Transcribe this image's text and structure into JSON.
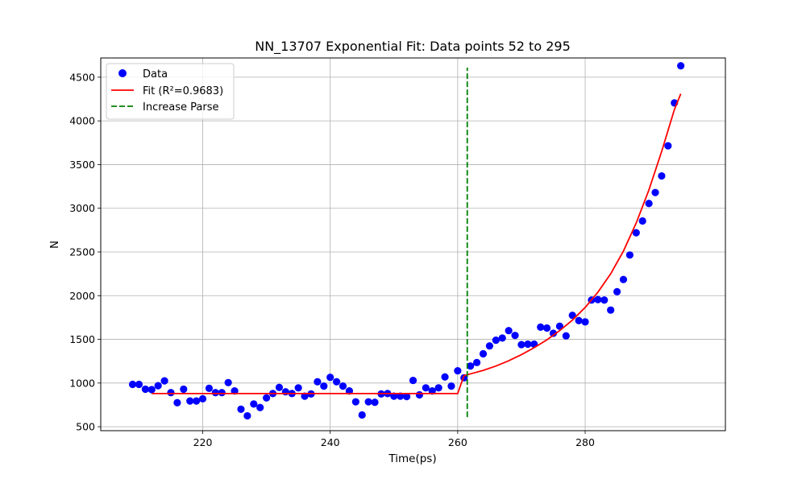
{
  "chart_data": {
    "type": "scatter",
    "title": "NN_13707 Exponential Fit: Data points 52 to 295",
    "xlabel": "Time(ps)",
    "ylabel": "N",
    "xlim": [
      204,
      302
    ],
    "ylim": [
      455,
      4720
    ],
    "xticks": [
      220,
      240,
      260,
      280
    ],
    "yticks": [
      500,
      1000,
      1500,
      2000,
      2500,
      3000,
      3500,
      4000,
      4500
    ],
    "grid": true,
    "legend_position": "top-left",
    "series": [
      {
        "name": "Data",
        "kind": "scatter",
        "color": "#0000ff",
        "x": [
          209,
          210,
          211,
          212,
          213,
          214,
          215,
          216,
          217,
          218,
          219,
          220,
          221,
          222,
          223,
          224,
          225,
          226,
          227,
          228,
          229,
          230,
          231,
          232,
          233,
          234,
          235,
          236,
          237,
          238,
          239,
          240,
          241,
          242,
          243,
          244,
          245,
          246,
          247,
          248,
          249,
          250,
          251,
          252,
          253,
          254,
          255,
          256,
          257,
          258,
          259,
          260,
          261,
          262,
          263,
          264,
          265,
          266,
          267,
          268,
          269,
          270,
          271,
          272,
          273,
          274,
          275,
          276,
          277,
          278,
          279,
          280,
          281,
          282,
          283,
          284,
          285,
          286,
          287,
          288,
          289,
          290,
          291,
          292,
          293,
          294,
          295
        ],
        "y": [
          985,
          985,
          930,
          925,
          970,
          1025,
          890,
          775,
          930,
          795,
          795,
          820,
          940,
          890,
          890,
          1005,
          910,
          700,
          625,
          760,
          720,
          830,
          880,
          950,
          900,
          880,
          945,
          850,
          875,
          1015,
          965,
          1065,
          1015,
          965,
          910,
          785,
          635,
          785,
          780,
          875,
          880,
          850,
          850,
          845,
          1030,
          865,
          945,
          910,
          945,
          1070,
          965,
          1140,
          1060,
          1195,
          1235,
          1335,
          1425,
          1490,
          1515,
          1600,
          1545,
          1440,
          1445,
          1445,
          1640,
          1630,
          1570,
          1650,
          1540,
          1775,
          1715,
          1700,
          1950,
          1955,
          1950,
          1835,
          2045,
          2185,
          2465,
          2720,
          2855,
          3055,
          3180,
          3370,
          3715,
          4205,
          4630
        ]
      },
      {
        "name": "Fit (R²=0.9683)",
        "kind": "line",
        "color": "#ff0000",
        "x": [
          212,
          215,
          220,
          225,
          230,
          235,
          240,
          245,
          250,
          255,
          260,
          260.5,
          261,
          262,
          264,
          266,
          268,
          270,
          272,
          274,
          276,
          278,
          280,
          282,
          284,
          286,
          288,
          290,
          292,
          294,
          295
        ],
        "y": [
          880,
          880,
          880,
          880,
          880,
          880,
          880,
          880,
          880,
          880,
          880,
          985,
          1085,
          1105,
          1145,
          1195,
          1255,
          1325,
          1405,
          1495,
          1600,
          1720,
          1865,
          2040,
          2250,
          2510,
          2830,
          3210,
          3650,
          4130,
          4310
        ]
      },
      {
        "name": "Increase Parse",
        "kind": "vline",
        "color": "#008000",
        "x": 261.5,
        "y_range": [
          610,
          4610
        ]
      }
    ]
  }
}
